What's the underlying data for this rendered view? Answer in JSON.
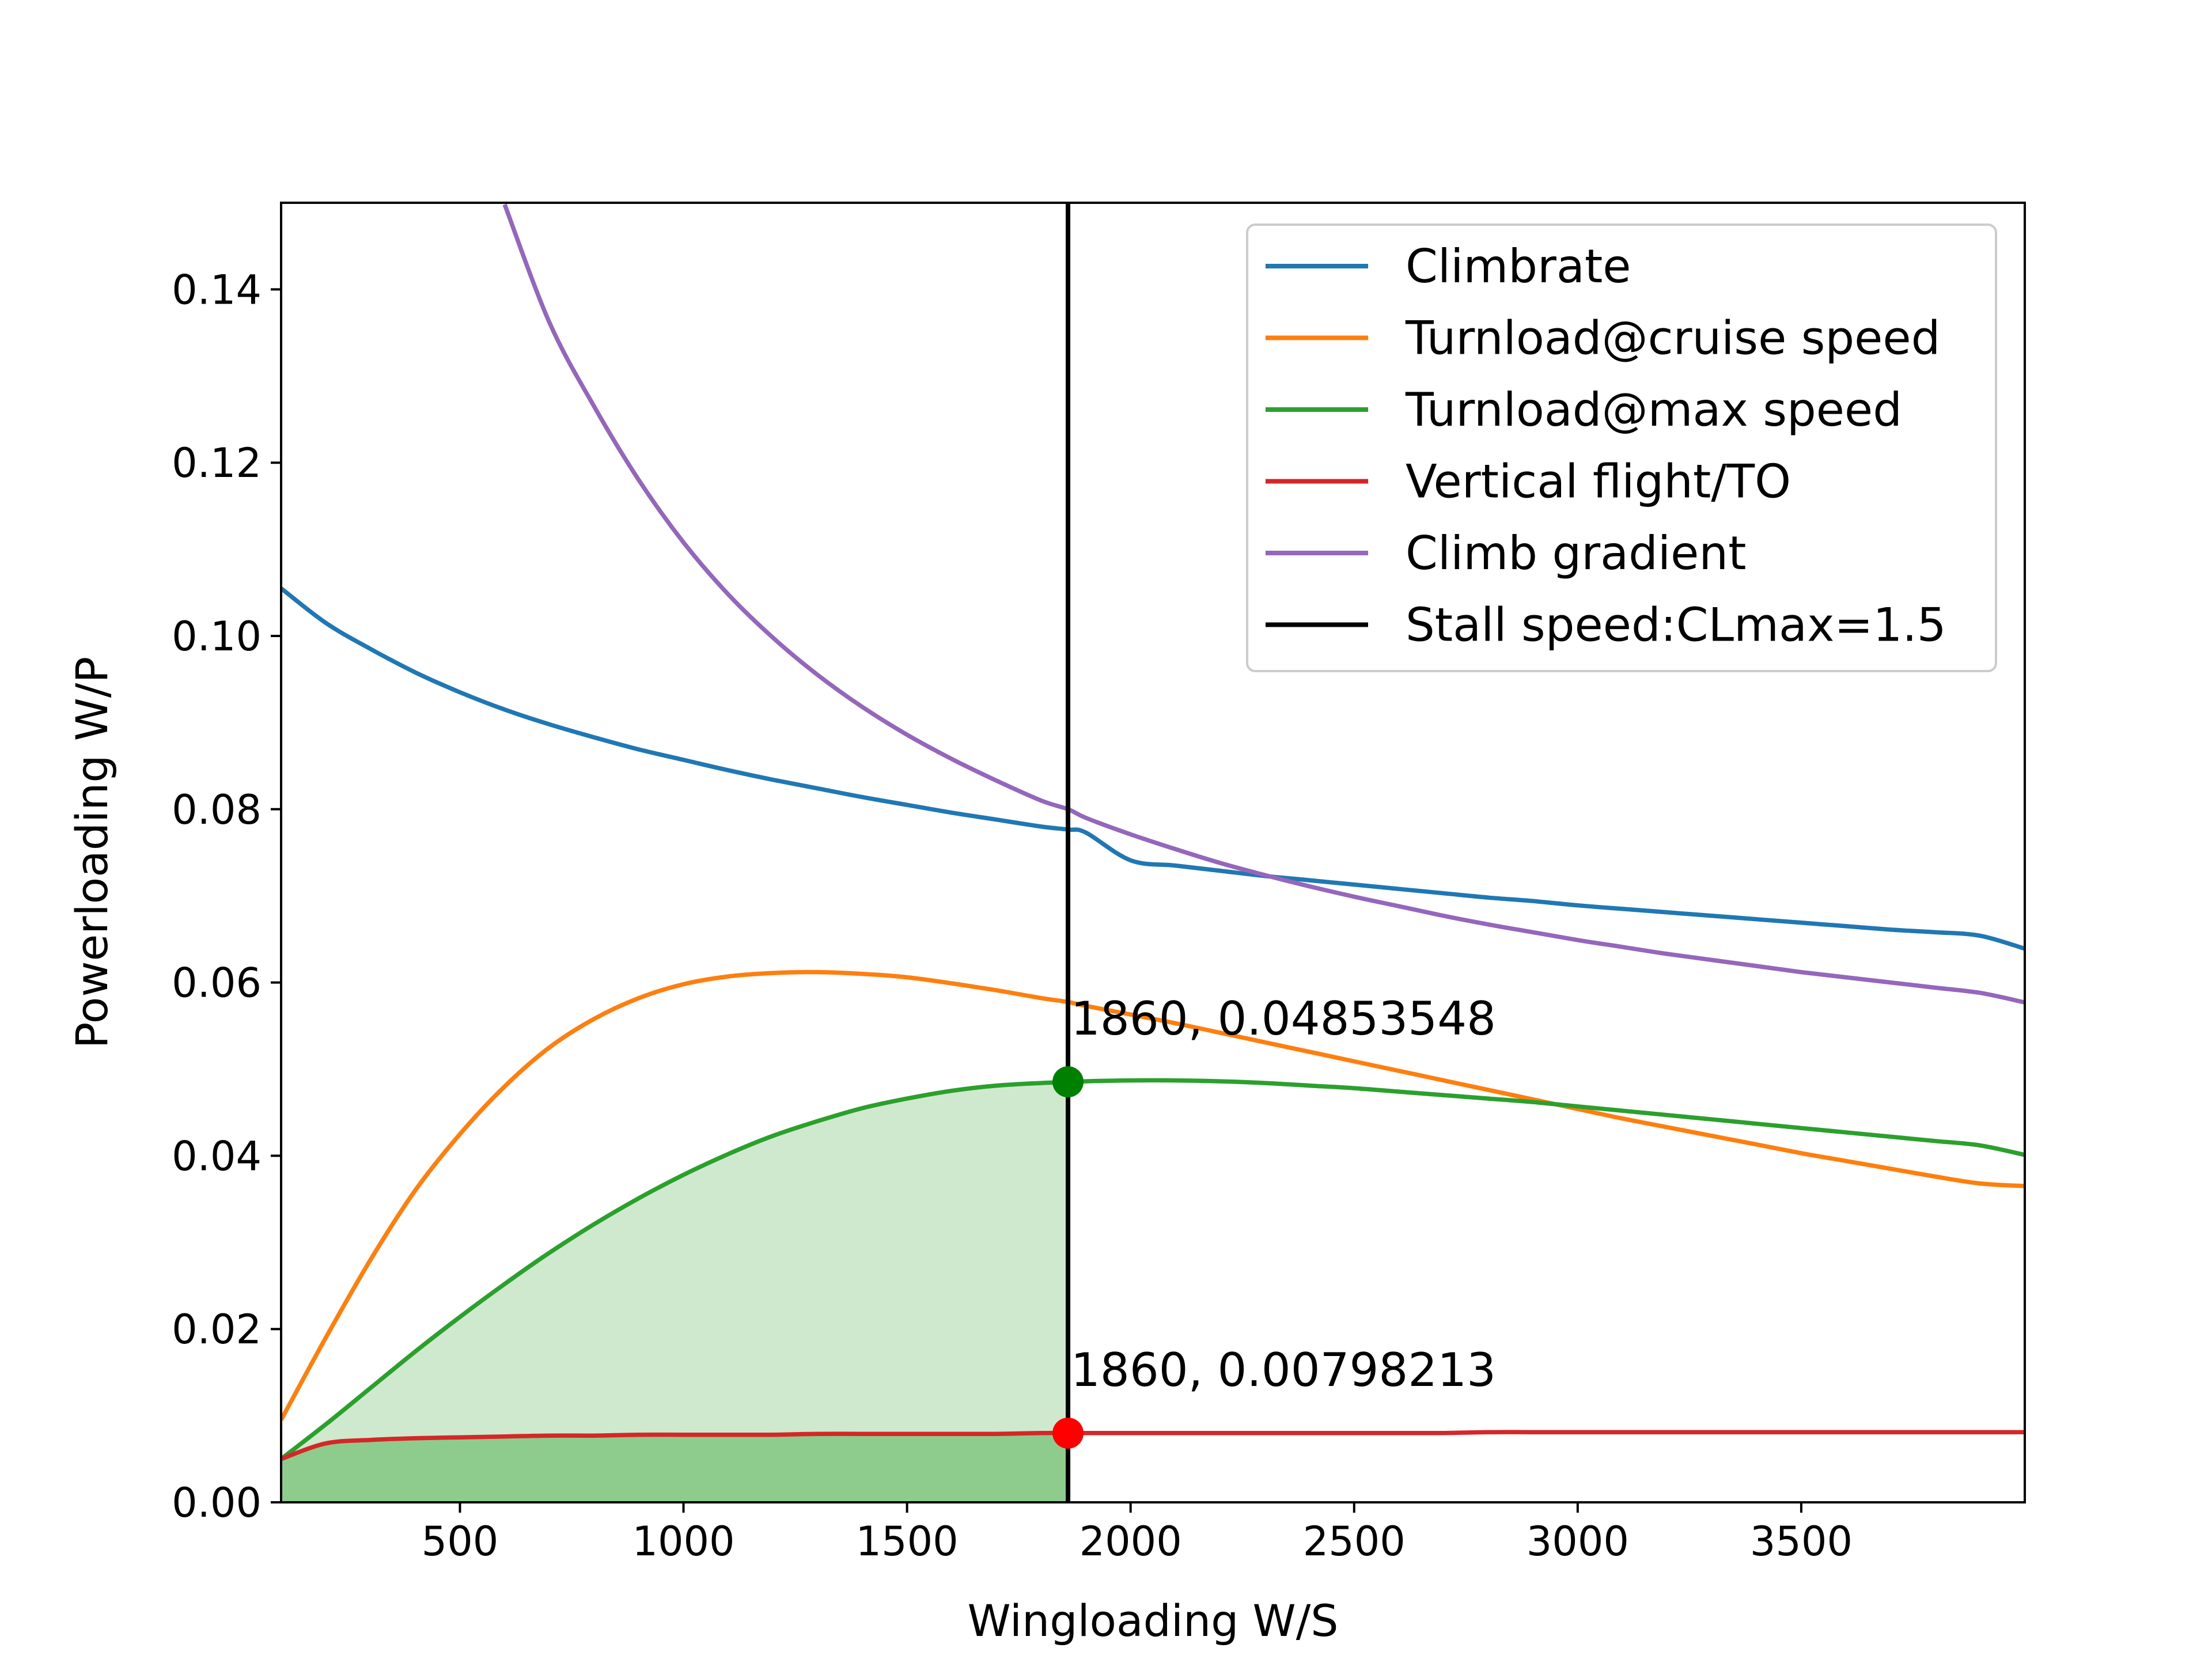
{
  "chart_data": {
    "type": "line",
    "title": "",
    "xlabel": "Wingloading W/S",
    "ylabel": "Powerloading W/P",
    "xlim": [
      100,
      4000
    ],
    "ylim": [
      0,
      0.15
    ],
    "x_ticks": [
      500,
      1000,
      1500,
      2000,
      2500,
      3000,
      3500
    ],
    "y_ticks": [
      0.0,
      0.02,
      0.04,
      0.06,
      0.08,
      0.1,
      0.12,
      0.14
    ],
    "x_tick_labels": [
      "500",
      "1000",
      "1500",
      "2000",
      "2500",
      "3000",
      "3500"
    ],
    "y_tick_labels": [
      "0.00",
      "0.02",
      "0.04",
      "0.06",
      "0.08",
      "0.10",
      "0.12",
      "0.14"
    ],
    "grid": false,
    "legend_position": "top-right",
    "x": [
      100,
      200,
      300,
      400,
      500,
      600,
      700,
      800,
      900,
      1000,
      1100,
      1200,
      1300,
      1400,
      1500,
      1600,
      1700,
      1800,
      1860,
      1900,
      2000,
      2100,
      2200,
      2300,
      2400,
      2500,
      2600,
      2700,
      2800,
      2900,
      3000,
      3100,
      3200,
      3300,
      3400,
      3500,
      3600,
      3700,
      3800,
      3900,
      4000
    ],
    "series": [
      {
        "name": "Climbrate",
        "color": "#1f77b4",
        "values": [
          0.1055,
          0.1015,
          0.0985,
          0.0958,
          0.0935,
          0.0915,
          0.0898,
          0.0883,
          0.0869,
          0.0857,
          0.0845,
          0.0834,
          0.0824,
          0.0814,
          0.0805,
          0.0796,
          0.0788,
          0.078,
          0.0752,
          0.0773,
          0.0741,
          0.0735,
          0.0729,
          0.0723,
          0.0718,
          0.0713,
          0.0708,
          0.0703,
          0.0698,
          0.0694,
          0.0689,
          0.0685,
          0.0681,
          0.0677,
          0.0673,
          0.0669,
          0.0665,
          0.0661,
          0.0658,
          0.0654,
          0.0639
        ]
      },
      {
        "name": "Turnload@cruise speed",
        "color": "#ff7f0e",
        "values": [
          0.0095,
          0.019,
          0.028,
          0.036,
          0.0425,
          0.048,
          0.0525,
          0.0558,
          0.0582,
          0.0598,
          0.0607,
          0.0611,
          0.0612,
          0.061,
          0.0606,
          0.0599,
          0.0591,
          0.0582,
          0.0577,
          0.0573,
          0.0563,
          0.0553,
          0.0542,
          0.0531,
          0.052,
          0.0509,
          0.0498,
          0.0487,
          0.0476,
          0.0465,
          0.0454,
          0.0443,
          0.0433,
          0.0423,
          0.0413,
          0.0403,
          0.0394,
          0.0385,
          0.0376,
          0.0368,
          0.0365
        ]
      },
      {
        "name": "Turnload@max speed",
        "color": "#2ca02c",
        "values": [
          0.005,
          0.009,
          0.0132,
          0.0174,
          0.0214,
          0.0252,
          0.0288,
          0.0321,
          0.0351,
          0.0378,
          0.0402,
          0.0423,
          0.044,
          0.0455,
          0.0466,
          0.0475,
          0.0481,
          0.0484,
          0.0485,
          0.0486,
          0.0487,
          0.0487,
          0.0486,
          0.0484,
          0.0481,
          0.0478,
          0.0474,
          0.047,
          0.0466,
          0.0462,
          0.0457,
          0.0452,
          0.0447,
          0.0442,
          0.0437,
          0.0432,
          0.0427,
          0.0422,
          0.0417,
          0.0412,
          0.0401
        ]
      },
      {
        "name": "Vertical flight/TO",
        "color": "#d62728",
        "values": [
          0.005,
          0.0068,
          0.0072,
          0.0074,
          0.0075,
          0.0076,
          0.0077,
          0.0077,
          0.0078,
          0.0078,
          0.0078,
          0.0078,
          0.0079,
          0.0079,
          0.0079,
          0.0079,
          0.0079,
          0.008,
          0.008,
          0.008,
          0.008,
          0.008,
          0.008,
          0.008,
          0.008,
          0.008,
          0.008,
          0.008,
          0.0081,
          0.0081,
          0.0081,
          0.0081,
          0.0081,
          0.0081,
          0.0081,
          0.0081,
          0.0081,
          0.0081,
          0.0081,
          0.0081,
          0.0081
        ]
      },
      {
        "name": "Climb gradient",
        "color": "#9467bd",
        "values": [
          null,
          null,
          null,
          null,
          null,
          0.1498,
          0.1362,
          0.1265,
          0.118,
          0.1108,
          0.1048,
          0.0998,
          0.0955,
          0.0918,
          0.0886,
          0.0858,
          0.0833,
          0.081,
          0.0844,
          0.079,
          0.0771,
          0.0754,
          0.0738,
          0.0724,
          0.0711,
          0.0699,
          0.0688,
          0.0677,
          0.0667,
          0.0658,
          0.0649,
          0.0641,
          0.0633,
          0.0626,
          0.0619,
          0.0612,
          0.0606,
          0.06,
          0.0594,
          0.0588,
          0.0577
        ]
      }
    ],
    "vertical_line": {
      "name": "Stall speed:CLmax=1.5",
      "x": 1860,
      "color": "#000000"
    },
    "markers": [
      {
        "x": 1860,
        "y": 0.04853548,
        "color": "#008000",
        "label": "1860, 0.04853548"
      },
      {
        "x": 1860,
        "y": 0.00798213,
        "color": "#ff0000",
        "label": "1860, 0.00798213"
      }
    ],
    "fills": [
      {
        "under": "Turnload@max speed",
        "x_to": 1860,
        "color": "#2ca02c",
        "opacity": 0.23
      },
      {
        "under": "Vertical flight/TO",
        "x_to": 1860,
        "color": "#2ca02c",
        "opacity": 0.4
      }
    ],
    "legend": [
      "Climbrate",
      "Turnload@cruise speed",
      "Turnload@max speed",
      "Vertical flight/TO",
      "Climb gradient",
      "Stall speed:CLmax=1.5"
    ]
  }
}
